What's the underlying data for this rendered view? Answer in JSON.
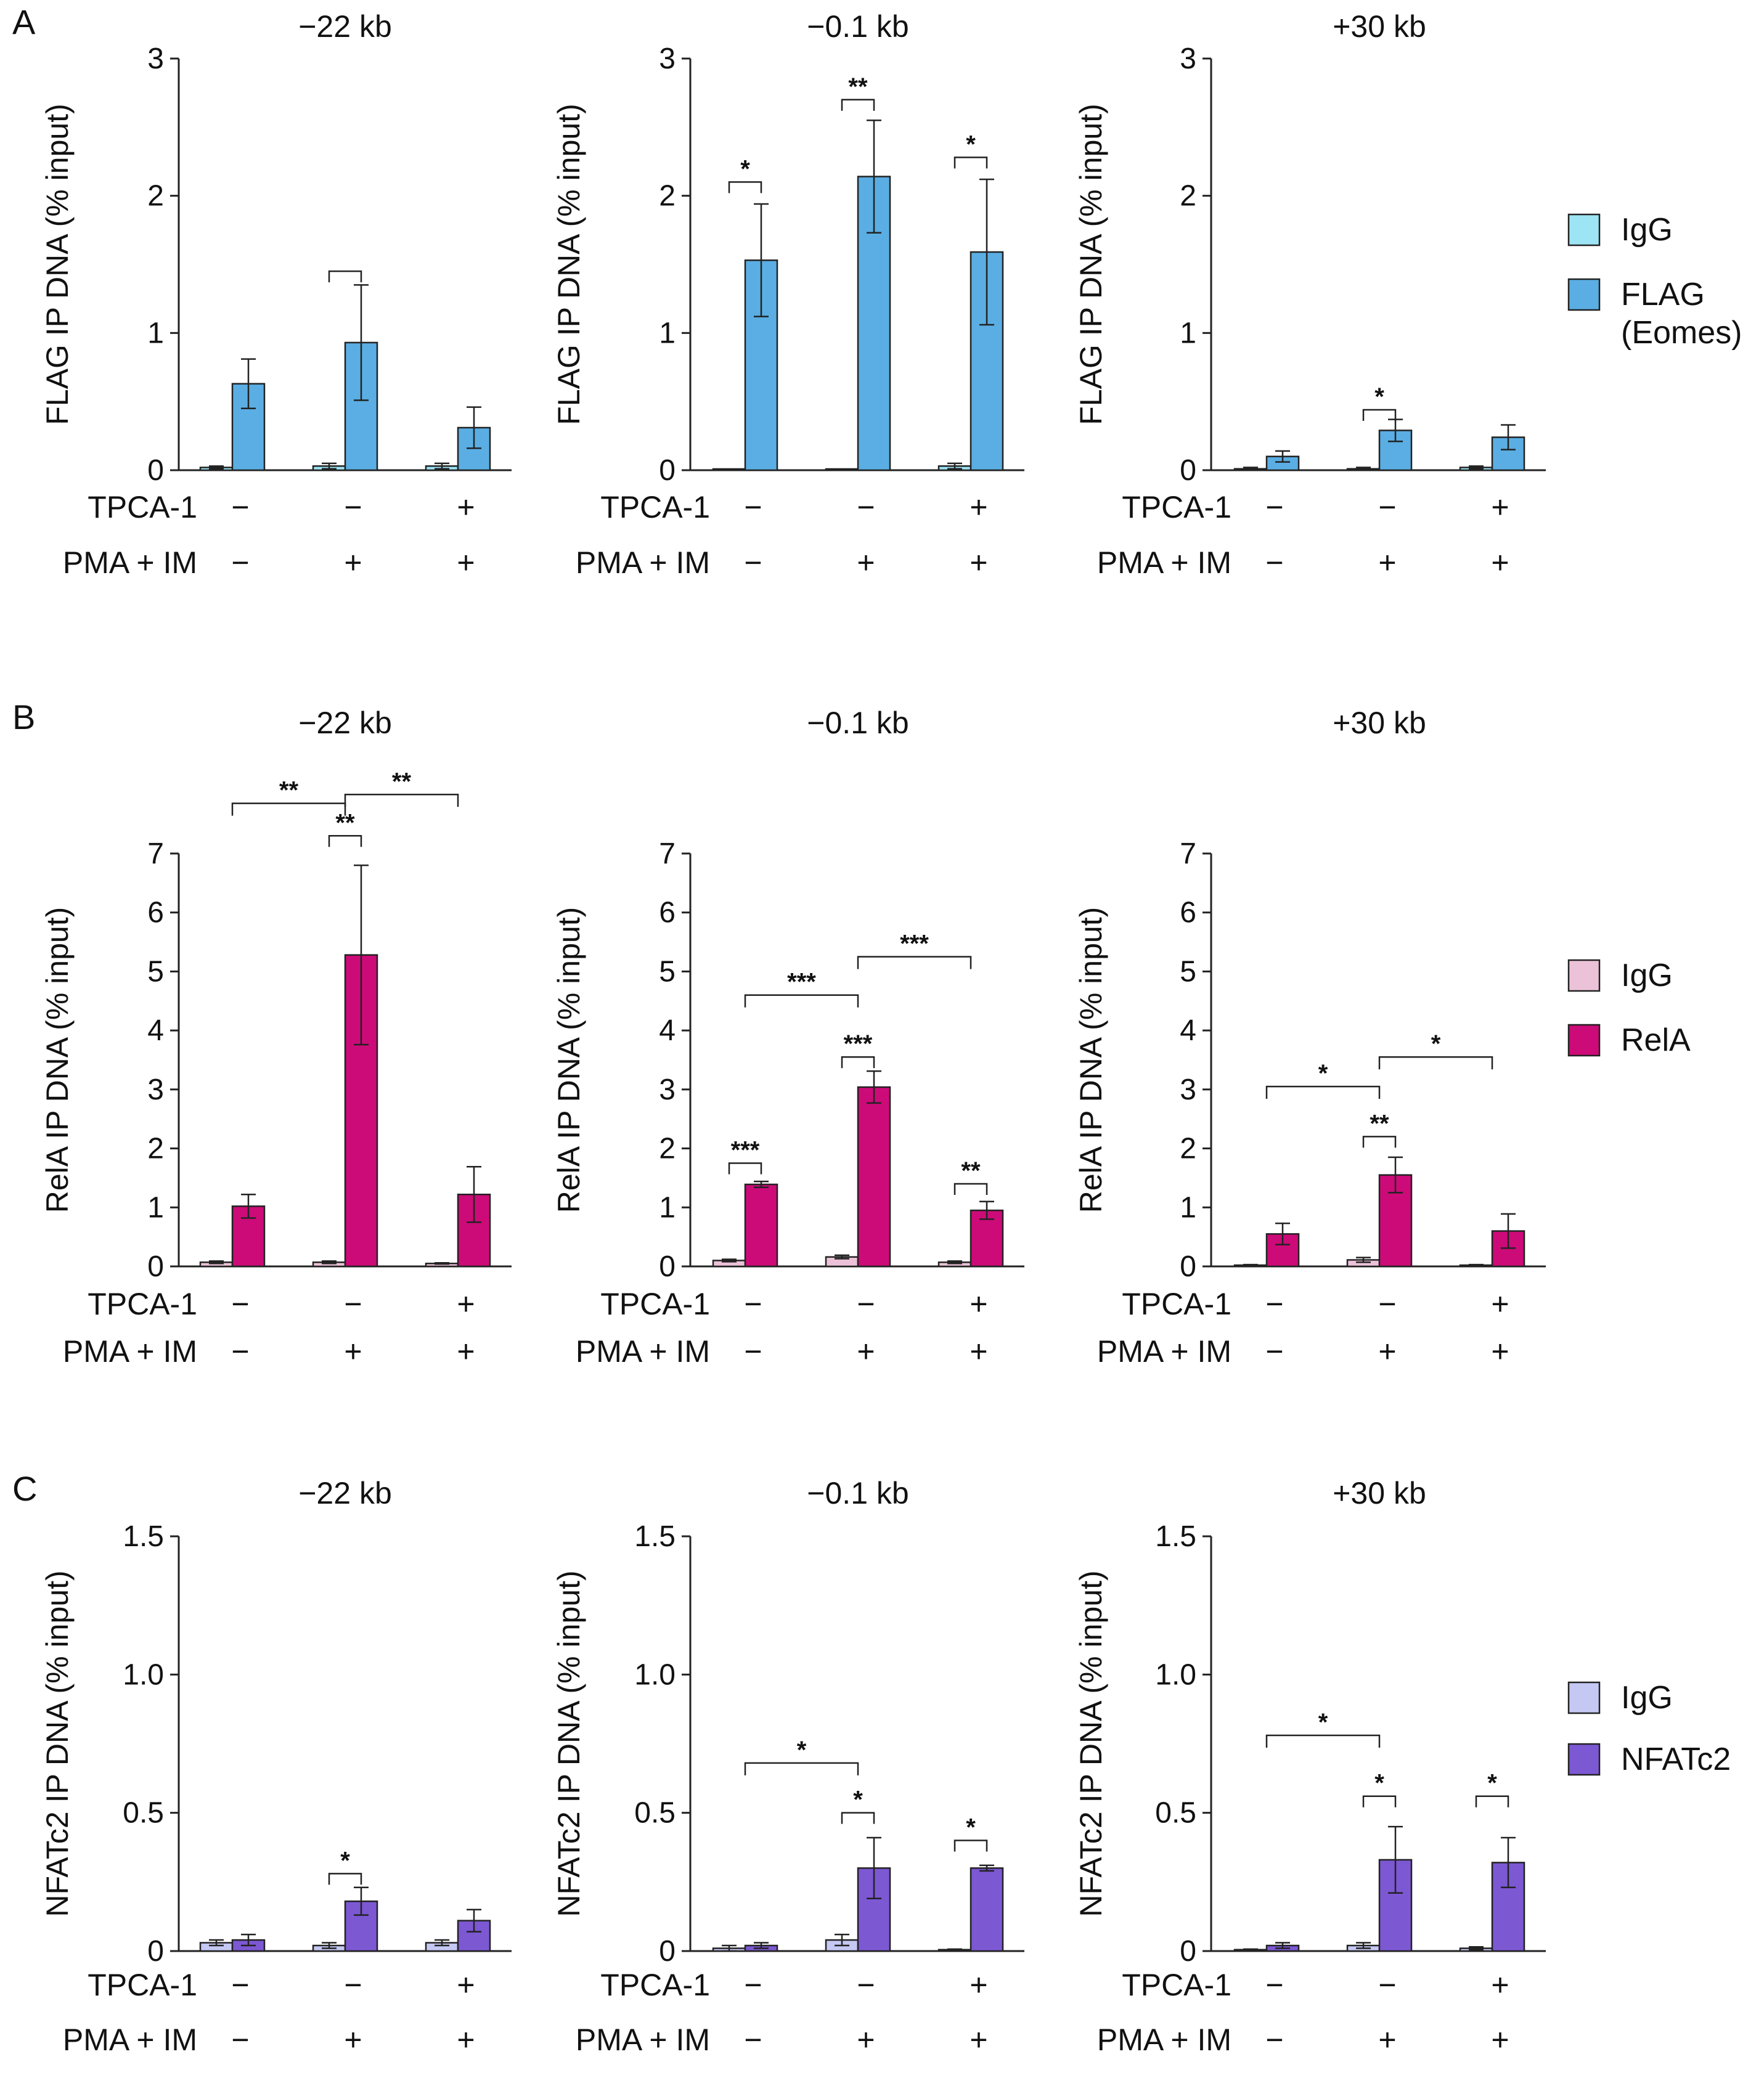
{
  "chart_data": [
    {
      "type": "bar",
      "panel": "A",
      "title": "−22 kb",
      "ylabel": "FLAG IP DNA (% input)",
      "ylim": [
        0,
        3
      ],
      "yticks": [
        0,
        1,
        2,
        3
      ],
      "ytick_labels": [
        "0",
        "1",
        "2",
        "3"
      ],
      "series": [
        {
          "name": "IgG",
          "values": [
            0.02,
            0.03,
            0.03
          ],
          "errors": [
            0.01,
            0.02,
            0.02
          ]
        },
        {
          "name": "FLAG (Eomes)",
          "values": [
            0.63,
            0.93,
            0.31
          ],
          "errors": [
            0.18,
            0.42,
            0.15
          ]
        }
      ],
      "conditions": [
        {
          "name": "TPCA-1",
          "values": [
            "−",
            "−",
            "+"
          ]
        },
        {
          "name": "PMA + IM",
          "values": [
            "−",
            "+",
            "+"
          ]
        }
      ],
      "significance": [
        {
          "type": "pair",
          "group": 1,
          "label": "",
          "y": 1.45
        }
      ]
    },
    {
      "type": "bar",
      "panel": "",
      "title": "−0.1 kb",
      "ylabel": "FLAG IP DNA (% input)",
      "ylim": [
        0,
        3
      ],
      "yticks": [
        0,
        1,
        2,
        3
      ],
      "ytick_labels": [
        "0",
        "1",
        "2",
        "3"
      ],
      "series": [
        {
          "name": "IgG",
          "values": [
            0.0,
            0.0,
            0.03
          ],
          "errors": [
            0.0,
            0.0,
            0.02
          ]
        },
        {
          "name": "FLAG (Eomes)",
          "values": [
            1.53,
            2.14,
            1.59
          ],
          "errors": [
            0.41,
            0.41,
            0.53
          ]
        }
      ],
      "conditions": [
        {
          "name": "TPCA-1",
          "values": [
            "−",
            "−",
            "+"
          ]
        },
        {
          "name": "PMA + IM",
          "values": [
            "−",
            "+",
            "+"
          ]
        }
      ],
      "significance": [
        {
          "type": "pair",
          "group": 0,
          "label": "*",
          "y": 2.1
        },
        {
          "type": "pair",
          "group": 1,
          "label": "**",
          "y": 2.7
        },
        {
          "type": "pair",
          "group": 2,
          "label": "*",
          "y": 2.28
        }
      ]
    },
    {
      "type": "bar",
      "panel": "",
      "title": "+30 kb",
      "ylabel": "FLAG IP DNA (% input)",
      "ylim": [
        0,
        3
      ],
      "yticks": [
        0,
        1,
        2,
        3
      ],
      "ytick_labels": [
        "0",
        "1",
        "2",
        "3"
      ],
      "series": [
        {
          "name": "IgG",
          "values": [
            0.01,
            0.01,
            0.02
          ],
          "errors": [
            0.01,
            0.01,
            0.01
          ]
        },
        {
          "name": "FLAG (Eomes)",
          "values": [
            0.1,
            0.29,
            0.24
          ],
          "errors": [
            0.04,
            0.08,
            0.09
          ]
        }
      ],
      "conditions": [
        {
          "name": "TPCA-1",
          "values": [
            "−",
            "−",
            "+"
          ]
        },
        {
          "name": "PMA + IM",
          "values": [
            "−",
            "+",
            "+"
          ]
        }
      ],
      "significance": [
        {
          "type": "pair",
          "group": 1,
          "label": "*",
          "y": 0.44
        }
      ],
      "legend": {
        "items": [
          "IgG",
          "FLAG\n(Eomes)"
        ],
        "colors": [
          "#9de4f5",
          "#5aaee3"
        ]
      }
    },
    {
      "type": "bar",
      "panel": "B",
      "title": "−22 kb",
      "ylabel": "RelA IP DNA (% input)",
      "ylim": [
        0,
        7
      ],
      "yticks": [
        0,
        1,
        2,
        3,
        4,
        5,
        6,
        7
      ],
      "ytick_labels": [
        "0",
        "1",
        "2",
        "3",
        "4",
        "5",
        "6",
        "7"
      ],
      "series": [
        {
          "name": "IgG",
          "values": [
            0.07,
            0.07,
            0.05
          ],
          "errors": [
            0.02,
            0.02,
            0.01
          ]
        },
        {
          "name": "RelA",
          "values": [
            1.02,
            5.28,
            1.22
          ],
          "errors": [
            0.2,
            1.52,
            0.47
          ]
        }
      ],
      "conditions": [
        {
          "name": "TPCA-1",
          "values": [
            "−",
            "−",
            "+"
          ]
        },
        {
          "name": "PMA + IM",
          "values": [
            "−",
            "+",
            "+"
          ]
        }
      ],
      "significance": [
        {
          "type": "pair",
          "group": 1,
          "label": "**",
          "y": 7.3
        },
        {
          "type": "span",
          "from": 0,
          "to": 1,
          "label": "**",
          "y": 7.85
        },
        {
          "type": "span",
          "from": 1,
          "to": 2,
          "label": "**",
          "y": 8.0
        }
      ]
    },
    {
      "type": "bar",
      "panel": "",
      "title": "−0.1 kb",
      "ylabel": "RelA IP DNA (% input)",
      "ylim": [
        0,
        7
      ],
      "yticks": [
        0,
        1,
        2,
        3,
        4,
        5,
        6,
        7
      ],
      "ytick_labels": [
        "0",
        "1",
        "2",
        "3",
        "4",
        "5",
        "6",
        "7"
      ],
      "series": [
        {
          "name": "IgG",
          "values": [
            0.1,
            0.16,
            0.07
          ],
          "errors": [
            0.02,
            0.03,
            0.02
          ]
        },
        {
          "name": "RelA",
          "values": [
            1.39,
            3.04,
            0.95
          ],
          "errors": [
            0.05,
            0.27,
            0.15
          ]
        }
      ],
      "conditions": [
        {
          "name": "TPCA-1",
          "values": [
            "−",
            "−",
            "+"
          ]
        },
        {
          "name": "PMA + IM",
          "values": [
            "−",
            "+",
            "+"
          ]
        }
      ],
      "significance": [
        {
          "type": "pair",
          "group": 0,
          "label": "***",
          "y": 1.75
        },
        {
          "type": "pair",
          "group": 1,
          "label": "***",
          "y": 3.55
        },
        {
          "type": "span",
          "from": 0,
          "to": 1,
          "label": "***",
          "y": 4.6
        },
        {
          "type": "span",
          "from": 1,
          "to": 2,
          "label": "***",
          "y": 5.25
        },
        {
          "type": "pair",
          "group": 2,
          "label": "**",
          "y": 1.4
        }
      ]
    },
    {
      "type": "bar",
      "panel": "",
      "title": "+30 kb",
      "ylabel": "RelA IP DNA (% input)",
      "ylim": [
        0,
        7
      ],
      "yticks": [
        0,
        1,
        2,
        3,
        4,
        5,
        6,
        7
      ],
      "ytick_labels": [
        "0",
        "1",
        "2",
        "3",
        "4",
        "5",
        "6",
        "7"
      ],
      "series": [
        {
          "name": "IgG",
          "values": [
            0.02,
            0.11,
            0.02
          ],
          "errors": [
            0.01,
            0.04,
            0.01
          ]
        },
        {
          "name": "RelA",
          "values": [
            0.55,
            1.55,
            0.6
          ],
          "errors": [
            0.18,
            0.3,
            0.29
          ]
        }
      ],
      "conditions": [
        {
          "name": "TPCA-1",
          "values": [
            "−",
            "−",
            "+"
          ]
        },
        {
          "name": "PMA + IM",
          "values": [
            "−",
            "+",
            "+"
          ]
        }
      ],
      "significance": [
        {
          "type": "pair",
          "group": 1,
          "label": "**",
          "y": 2.2
        },
        {
          "type": "span",
          "from": 0,
          "to": 1,
          "label": "*",
          "y": 3.05
        },
        {
          "type": "span",
          "from": 1,
          "to": 2,
          "label": "*",
          "y": 3.55
        }
      ],
      "legend": {
        "items": [
          "IgG",
          "RelA"
        ],
        "colors": [
          "#ecc2d8",
          "#cc0b78"
        ]
      }
    },
    {
      "type": "bar",
      "panel": "C",
      "title": "−22 kb",
      "ylabel": "NFATc2 IP DNA (% input)",
      "ylim": [
        0,
        1.5
      ],
      "yticks": [
        0,
        0.5,
        1.0,
        1.5
      ],
      "ytick_labels": [
        "0",
        "0.5",
        "1.0",
        "1.5"
      ],
      "series": [
        {
          "name": "IgG",
          "values": [
            0.03,
            0.02,
            0.03
          ],
          "errors": [
            0.01,
            0.01,
            0.01
          ]
        },
        {
          "name": "NFATc2",
          "values": [
            0.04,
            0.18,
            0.11
          ],
          "errors": [
            0.02,
            0.05,
            0.04
          ]
        }
      ],
      "conditions": [
        {
          "name": "TPCA-1",
          "values": [
            "−",
            "−",
            "+"
          ]
        },
        {
          "name": "PMA + IM",
          "values": [
            "−",
            "+",
            "+"
          ]
        }
      ],
      "significance": [
        {
          "type": "pair",
          "group": 1,
          "label": "*",
          "y": 0.28
        }
      ]
    },
    {
      "type": "bar",
      "panel": "",
      "title": "−0.1 kb",
      "ylabel": "NFATc2 IP DNA (% input)",
      "ylim": [
        0,
        1.5
      ],
      "yticks": [
        0,
        0.5,
        1.0,
        1.5
      ],
      "ytick_labels": [
        "0",
        "0.5",
        "1.0",
        "1.5"
      ],
      "series": [
        {
          "name": "IgG",
          "values": [
            0.01,
            0.04,
            0.005
          ],
          "errors": [
            0.01,
            0.02,
            0.002
          ]
        },
        {
          "name": "NFATc2",
          "values": [
            0.02,
            0.3,
            0.3
          ],
          "errors": [
            0.01,
            0.11,
            0.01
          ]
        }
      ],
      "conditions": [
        {
          "name": "TPCA-1",
          "values": [
            "−",
            "−",
            "+"
          ]
        },
        {
          "name": "PMA + IM",
          "values": [
            "−",
            "+",
            "+"
          ]
        }
      ],
      "significance": [
        {
          "type": "pair",
          "group": 1,
          "label": "*",
          "y": 0.5
        },
        {
          "type": "span",
          "from": 0,
          "to": 1,
          "label": "*",
          "y": 0.68
        },
        {
          "type": "pair",
          "group": 2,
          "label": "*",
          "y": 0.4
        }
      ]
    },
    {
      "type": "bar",
      "panel": "",
      "title": "+30 kb",
      "ylabel": "NFATc2 IP DNA (% input)",
      "ylim": [
        0,
        1.5
      ],
      "yticks": [
        0,
        0.5,
        1.0,
        1.5
      ],
      "ytick_labels": [
        "0",
        "0.5",
        "1.0",
        "1.5"
      ],
      "series": [
        {
          "name": "IgG",
          "values": [
            0.005,
            0.02,
            0.01
          ],
          "errors": [
            0.002,
            0.01,
            0.005
          ]
        },
        {
          "name": "NFATc2",
          "values": [
            0.02,
            0.33,
            0.32
          ],
          "errors": [
            0.01,
            0.12,
            0.09
          ]
        }
      ],
      "conditions": [
        {
          "name": "TPCA-1",
          "values": [
            "−",
            "−",
            "+"
          ]
        },
        {
          "name": "PMA + IM",
          "values": [
            "−",
            "+",
            "+"
          ]
        }
      ],
      "significance": [
        {
          "type": "pair",
          "group": 1,
          "label": "*",
          "y": 0.56
        },
        {
          "type": "span",
          "from": 0,
          "to": 1,
          "label": "*",
          "y": 0.78
        },
        {
          "type": "pair",
          "group": 2,
          "label": "*",
          "y": 0.56
        }
      ],
      "legend": {
        "items": [
          "IgG",
          "NFATc2"
        ],
        "colors": [
          "#c5c8f3",
          "#7c58d3"
        ]
      }
    }
  ],
  "colors": {
    "A": {
      "igg": "#9de4f5",
      "main": "#5aaee3"
    },
    "B": {
      "igg": "#ecc2d8",
      "main": "#cc0b78"
    },
    "C": {
      "igg": "#c5c8f3",
      "main": "#7c58d3"
    }
  }
}
